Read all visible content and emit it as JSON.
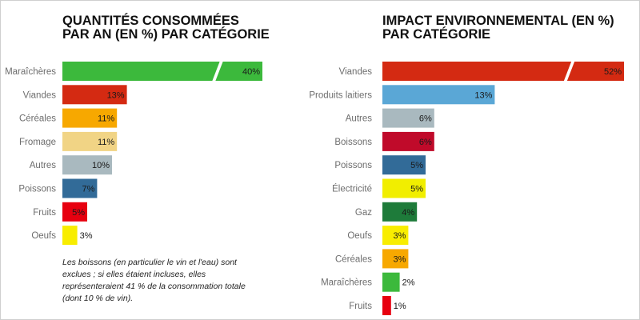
{
  "chart_data": [
    {
      "type": "bar",
      "orientation": "horizontal",
      "title": "QUANTITÉS CONSOMMÉES PAR AN (EN %) PAR CATÉGORIE",
      "title_lines": [
        "QUANTITÉS CONSOMMÉES",
        "PAR AN (EN %) PAR CATÉGORIE"
      ],
      "categories": [
        "Maraîchères",
        "Viandes",
        "Céréales",
        "Fromage",
        "Autres",
        "Poissons",
        "Fruits",
        "Oeufs"
      ],
      "values": [
        40,
        13,
        11,
        11,
        10,
        7,
        5,
        3
      ],
      "value_labels": [
        "40%",
        "13%",
        "11%",
        "11%",
        "10%",
        "7%",
        "5%",
        "3%"
      ],
      "colors": [
        "#3cb93c",
        "#d42a12",
        "#f7a800",
        "#f1d485",
        "#a9b9bf",
        "#326b98",
        "#e7000f",
        "#f8ed00"
      ],
      "axis_break": "Maraîchères",
      "note": "Les boissons (en particulier le vin et l'eau) sont exclues ; si elles étaient incluses, elles représenteraient 41 % de la consommation totale (dont 10 % de vin)."
    },
    {
      "type": "bar",
      "orientation": "horizontal",
      "title": "IMPACT ENVIRONNEMENTAL (EN %) PAR CATÉGORIE",
      "title_lines": [
        "IMPACT ENVIRONNEMENTAL (EN %)",
        "PAR CATÉGORIE"
      ],
      "categories": [
        "Viandes",
        "Produits laitiers",
        "Autres",
        "Boissons",
        "Poissons",
        "Électricité",
        "Gaz",
        "Oeufs",
        "Céréales",
        "Maraîchères",
        "Fruits"
      ],
      "values": [
        52,
        13,
        6,
        6,
        5,
        5,
        4,
        3,
        3,
        2,
        1
      ],
      "value_labels": [
        "52%",
        "13%",
        "6%",
        "6%",
        "5%",
        "5%",
        "4%",
        "3%",
        "3%",
        "2%",
        "1%"
      ],
      "colors": [
        "#d42a12",
        "#5aa7d6",
        "#a9b9bf",
        "#c00a2a",
        "#326b98",
        "#f1ee00",
        "#1e7b3a",
        "#f8ed00",
        "#f7a800",
        "#3cb93c",
        "#e7000f"
      ],
      "axis_break": "Viandes"
    }
  ]
}
